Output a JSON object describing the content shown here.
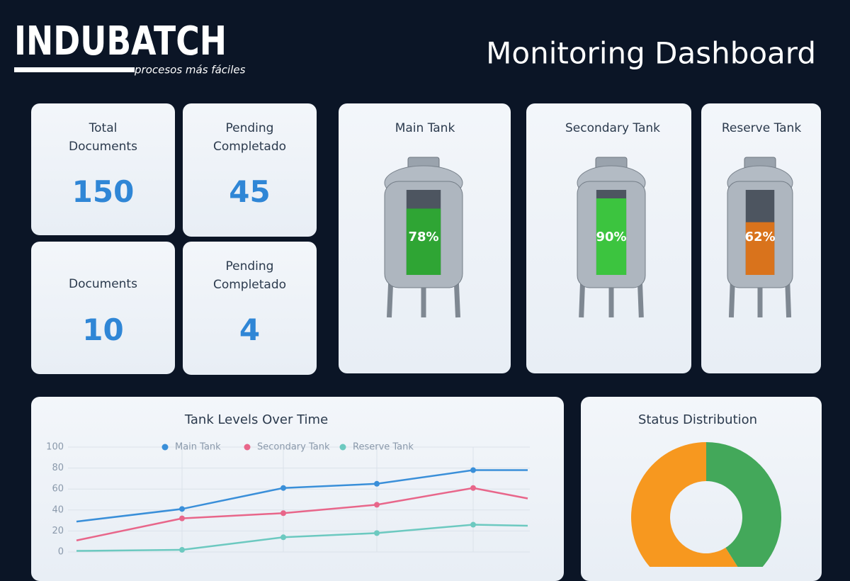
{
  "header": {
    "logo": "INDUBATCH",
    "tagline": "procesos más fáciles",
    "title": "Monitoring Dashboard"
  },
  "kpis": [
    {
      "label": "Total Documents",
      "value": 150
    },
    {
      "label": "Pending Completado",
      "value": 45
    },
    {
      "label": "Documents",
      "value": 10
    },
    {
      "label": "Pending Completado",
      "value": 4
    }
  ],
  "tanks": [
    {
      "name": "Main Tank",
      "level": 78,
      "level_label": "78%",
      "color": "#2fa534"
    },
    {
      "name": "Secondary Tank",
      "level": 90,
      "level_label": "90%",
      "color": "#3cc43f"
    },
    {
      "name": "Reserve Tank",
      "level": 62,
      "level_label": "62%",
      "color": "#d9731c"
    }
  ],
  "chart_data": [
    {
      "type": "line",
      "title": "Tank Levels Over Time",
      "categories": [
        null,
        null,
        null,
        null,
        null,
        null
      ],
      "series": [
        {
          "name": "Main Tank",
          "color": "#3a8fd9",
          "values": [
            29,
            41,
            61,
            65,
            78,
            78
          ]
        },
        {
          "name": "Secondary Tank",
          "color": "#e8668a",
          "values": [
            11,
            32,
            37,
            45,
            61,
            51
          ]
        },
        {
          "name": "Reserve Tank",
          "color": "#6cc9c0",
          "values": [
            1,
            2,
            14,
            18,
            26,
            25
          ]
        }
      ],
      "ylim": [
        0,
        100
      ],
      "yticks": [
        0,
        20,
        40,
        60,
        80,
        100
      ],
      "grid": true,
      "legend": "top"
    },
    {
      "type": "pie",
      "title": "Status Distribution",
      "values": [
        41,
        59
      ],
      "colors": [
        "#43a85a",
        "#f7981f"
      ],
      "donut": true
    }
  ]
}
